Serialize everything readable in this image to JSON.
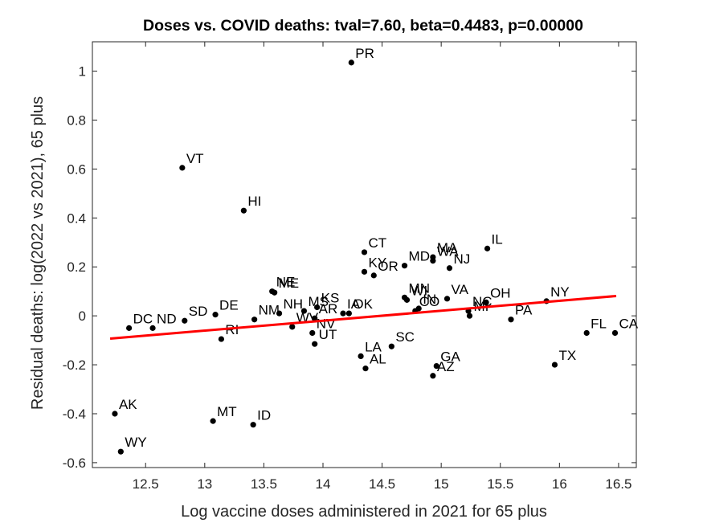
{
  "chart_data": {
    "type": "scatter",
    "title": "Doses vs. COVID deaths: tval=7.60, beta=0.4483, p=0.00000",
    "xlabel": "Log vaccine doses administered in 2021 for 65 plus",
    "ylabel": "Residual deaths: log(2022 vs 2021), 65 plus",
    "xlim": [
      12.05,
      16.65
    ],
    "ylim": [
      -0.62,
      1.12
    ],
    "xticks": [
      12.5,
      13,
      13.5,
      14,
      14.5,
      15,
      15.5,
      16,
      16.5
    ],
    "xtick_labels": [
      "12.5",
      "13",
      "13.5",
      "14",
      "14.5",
      "15",
      "15.5",
      "16",
      "16.5"
    ],
    "yticks": [
      -0.6,
      -0.4,
      -0.2,
      0,
      0.2,
      0.4,
      0.6,
      0.8,
      1
    ],
    "ytick_labels": [
      "-0.6",
      "-0.4",
      "-0.2",
      "0",
      "0.2",
      "0.4",
      "0.6",
      "0.8",
      "1"
    ],
    "grid": false,
    "point_color": "#000000",
    "points": [
      {
        "label": "PR",
        "x": 14.24,
        "y": 1.035
      },
      {
        "label": "VT",
        "x": 12.81,
        "y": 0.605
      },
      {
        "label": "HI",
        "x": 13.33,
        "y": 0.43
      },
      {
        "label": "IL",
        "x": 15.39,
        "y": 0.275
      },
      {
        "label": "CT",
        "x": 14.35,
        "y": 0.26
      },
      {
        "label": "MA",
        "x": 14.93,
        "y": 0.24
      },
      {
        "label": "WA",
        "x": 14.93,
        "y": 0.225
      },
      {
        "label": "MD",
        "x": 14.69,
        "y": 0.205
      },
      {
        "label": "NJ",
        "x": 15.07,
        "y": 0.195
      },
      {
        "label": "KY",
        "x": 14.35,
        "y": 0.18
      },
      {
        "label": "OR",
        "x": 14.43,
        "y": 0.165
      },
      {
        "label": "NE",
        "x": 13.57,
        "y": 0.1
      },
      {
        "label": "ME",
        "x": 13.59,
        "y": 0.095
      },
      {
        "label": "MN",
        "x": 14.69,
        "y": 0.075
      },
      {
        "label": "WI",
        "x": 14.71,
        "y": 0.065
      },
      {
        "label": "VA",
        "x": 15.05,
        "y": 0.07
      },
      {
        "label": "NY",
        "x": 15.89,
        "y": 0.06
      },
      {
        "label": "OH",
        "x": 15.38,
        "y": 0.055
      },
      {
        "label": "IN",
        "x": 14.81,
        "y": 0.03
      },
      {
        "label": "KS",
        "x": 13.95,
        "y": 0.035
      },
      {
        "label": "NC",
        "x": 15.23,
        "y": 0.02
      },
      {
        "label": "MI",
        "x": 15.24,
        "y": 0.0
      },
      {
        "label": "CO",
        "x": 14.78,
        "y": 0.02
      },
      {
        "label": "DE",
        "x": 13.09,
        "y": 0.005
      },
      {
        "label": "IA",
        "x": 14.17,
        "y": 0.01
      },
      {
        "label": "OK",
        "x": 14.22,
        "y": 0.01
      },
      {
        "label": "NH",
        "x": 13.63,
        "y": 0.01
      },
      {
        "label": "MS",
        "x": 13.84,
        "y": 0.02
      },
      {
        "label": "SD",
        "x": 12.83,
        "y": -0.02
      },
      {
        "label": "PA",
        "x": 15.59,
        "y": -0.015
      },
      {
        "label": "AR",
        "x": 13.93,
        "y": -0.01
      },
      {
        "label": "WV",
        "x": 13.74,
        "y": -0.045
      },
      {
        "label": "DC",
        "x": 12.36,
        "y": -0.05
      },
      {
        "label": "ND",
        "x": 12.56,
        "y": -0.05
      },
      {
        "label": "NM",
        "x": 13.42,
        "y": -0.015
      },
      {
        "label": "CA",
        "x": 16.47,
        "y": -0.07
      },
      {
        "label": "FL",
        "x": 16.23,
        "y": -0.07
      },
      {
        "label": "NV",
        "x": 13.91,
        "y": -0.07
      },
      {
        "label": "RI",
        "x": 13.14,
        "y": -0.095
      },
      {
        "label": "UT",
        "x": 13.93,
        "y": -0.115
      },
      {
        "label": "SC",
        "x": 14.58,
        "y": -0.125
      },
      {
        "label": "LA",
        "x": 14.32,
        "y": -0.165
      },
      {
        "label": "TX",
        "x": 15.96,
        "y": -0.2
      },
      {
        "label": "GA",
        "x": 14.96,
        "y": -0.205
      },
      {
        "label": "AL",
        "x": 14.36,
        "y": -0.215
      },
      {
        "label": "AZ",
        "x": 14.93,
        "y": -0.245
      },
      {
        "label": "AK",
        "x": 12.24,
        "y": -0.4
      },
      {
        "label": "MT",
        "x": 13.07,
        "y": -0.43
      },
      {
        "label": "ID",
        "x": 13.41,
        "y": -0.445
      },
      {
        "label": "WY",
        "x": 12.29,
        "y": -0.555
      }
    ],
    "fit_line": {
      "x": [
        12.2,
        16.48
      ],
      "y": [
        -0.093,
        0.081
      ],
      "color": "#ff0000"
    }
  }
}
